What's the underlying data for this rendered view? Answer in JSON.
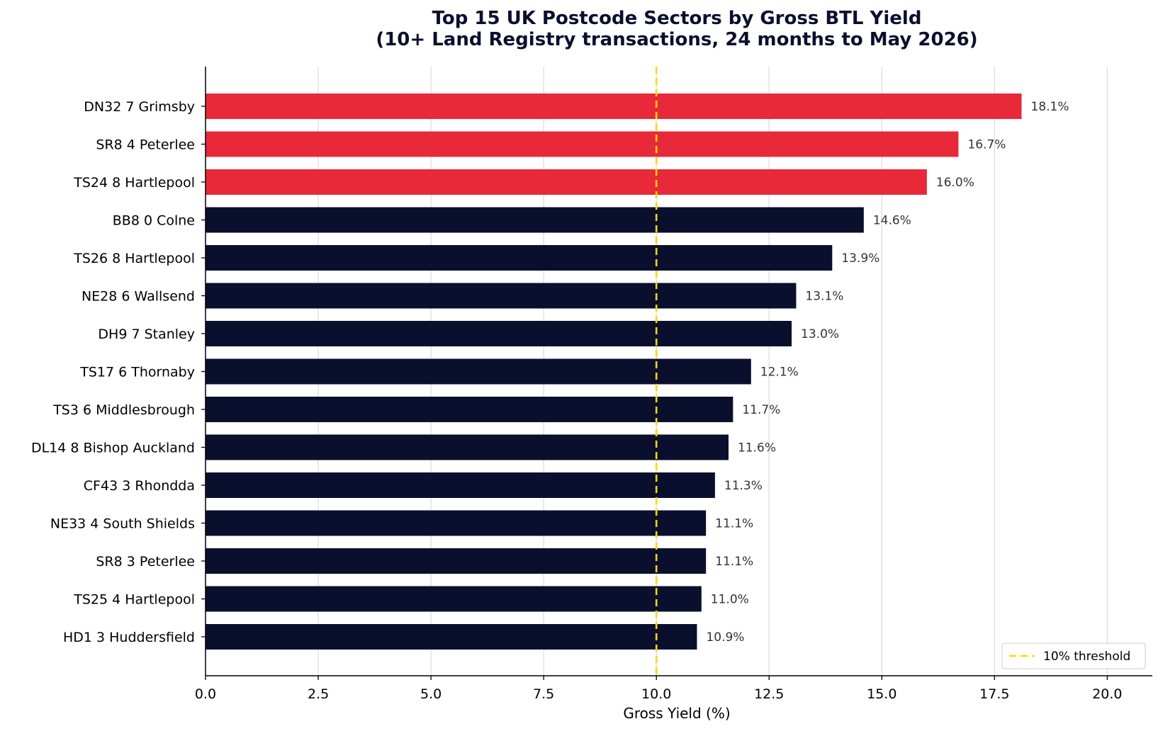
{
  "chart_data": {
    "type": "bar",
    "orientation": "horizontal",
    "title": "Top 15 UK Postcode Sectors by Gross BTL Yield",
    "subtitle": "(10+ Land Registry transactions, 24 months to May 2026)",
    "xlabel": "Gross Yield (%)",
    "ylabel": "",
    "xlim": [
      0,
      21
    ],
    "xticks": [
      0,
      2.5,
      5,
      7.5,
      10,
      12.5,
      15,
      17.5,
      20
    ],
    "xtick_labels": [
      "0.0",
      "2.5",
      "5.0",
      "7.5",
      "10.0",
      "12.5",
      "15.0",
      "17.5",
      "20.0"
    ],
    "grid": "vertical",
    "categories": [
      "DN32 7  Grimsby",
      "SR8 4  Peterlee",
      "TS24 8  Hartlepool",
      "BB8 0  Colne",
      "TS26 8  Hartlepool",
      "NE28 6  Wallsend",
      "DH9 7  Stanley",
      "TS17 6  Thornaby",
      "TS3 6  Middlesbrough",
      "DL14 8  Bishop Auckland",
      "CF43 3  Rhondda",
      "NE33 4  South Shields",
      "SR8 3  Peterlee",
      "TS25 4  Hartlepool",
      "HD1 3  Huddersfield"
    ],
    "values": [
      18.1,
      16.7,
      16.0,
      14.6,
      13.9,
      13.1,
      13.0,
      12.1,
      11.7,
      11.6,
      11.3,
      11.1,
      11.1,
      11.0,
      10.9
    ],
    "value_labels": [
      "18.1%",
      "16.7%",
      "16.0%",
      "14.6%",
      "13.9%",
      "13.1%",
      "13.0%",
      "12.1%",
      "11.7%",
      "11.6%",
      "11.3%",
      "11.1%",
      "11.1%",
      "11.0%",
      "10.9%"
    ],
    "highlight_top_n": 3,
    "colors": {
      "highlight": "#e8293a",
      "default": "#0b0f2e",
      "threshold": "#ffd700",
      "grid": "#dddddd"
    },
    "threshold": {
      "value": 10,
      "label": "10% threshold",
      "style": "dashed"
    },
    "legend": {
      "position": "bottom-right",
      "entries": [
        "10% threshold"
      ]
    }
  }
}
